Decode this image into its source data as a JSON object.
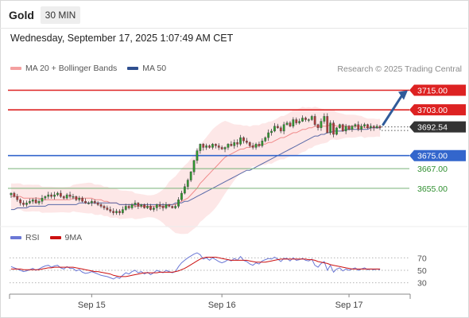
{
  "header": {
    "instrument": "Gold",
    "timeframe": "30 MIN",
    "datetime": "Wednesday, September 17, 2025 1:07:49 AM CET"
  },
  "legend": {
    "main": [
      {
        "label": "MA 20 + Bollinger Bands",
        "color": "#f4a0a0"
      },
      {
        "label": "MA 50",
        "color": "#2f4f8f"
      }
    ],
    "indicator": [
      {
        "label": "RSI",
        "color": "#6b78d6"
      },
      {
        "label": "9MA",
        "color": "#cc1111"
      }
    ]
  },
  "credit": "Research © 2025 Trading Central",
  "colors": {
    "up": "#2e9a2e",
    "down": "#b23a3a",
    "resistance": "#dd2222",
    "support": "#3366cc",
    "target": "#77b277",
    "last": "#333333",
    "arrow": "#2f5b9a"
  },
  "chart_data": [
    {
      "type": "candlestick",
      "ylim": [
        3634,
        3724
      ],
      "x_range": [
        0,
        120
      ],
      "x_ticks": [
        {
          "x": 26,
          "label": "Sep 15"
        },
        {
          "x": 68,
          "label": "Sep 16"
        },
        {
          "x": 109,
          "label": "Sep 17"
        }
      ],
      "levels": [
        {
          "value": 3715.0,
          "label": "3715.00",
          "kind": "resistance"
        },
        {
          "value": 3703.0,
          "label": "3703.00",
          "kind": "resistance"
        },
        {
          "value": 3692.54,
          "label": "3692.54",
          "kind": "last"
        },
        {
          "value": 3675.0,
          "label": "3675.00",
          "kind": "support"
        },
        {
          "value": 3667.0,
          "label": "3667.00",
          "kind": "target"
        },
        {
          "value": 3655.0,
          "label": "3655.00",
          "kind": "target"
        }
      ],
      "close": [
        3652,
        3650,
        3648,
        3646,
        3645,
        3646,
        3647,
        3648,
        3646,
        3647,
        3649,
        3650,
        3651,
        3650,
        3651,
        3652,
        3650,
        3649,
        3651,
        3650,
        3650,
        3648,
        3649,
        3647,
        3646,
        3646,
        3647,
        3646,
        3645,
        3644,
        3643,
        3642,
        3641,
        3640,
        3641,
        3640,
        3642,
        3644,
        3643,
        3645,
        3646,
        3644,
        3645,
        3643,
        3644,
        3642,
        3643,
        3645,
        3644,
        3643,
        3645,
        3644,
        3643,
        3644,
        3648,
        3652,
        3656,
        3660,
        3665,
        3672,
        3678,
        3682,
        3680,
        3681,
        3680,
        3682,
        3681,
        3680,
        3679,
        3680,
        3682,
        3681,
        3683,
        3682,
        3686,
        3684,
        3683,
        3681,
        3680,
        3682,
        3681,
        3684,
        3686,
        3689,
        3690,
        3693,
        3692,
        3690,
        3694,
        3695,
        3693,
        3697,
        3695,
        3696,
        3698,
        3697,
        3697,
        3699,
        3694,
        3692,
        3696,
        3699,
        3689,
        3695,
        3688,
        3692,
        3694,
        3690,
        3693,
        3691,
        3693,
        3694,
        3691,
        3693,
        3694,
        3692,
        3693,
        3692,
        3693,
        3692
      ],
      "ma20": [
        3650,
        3650,
        3650,
        3650,
        3649,
        3649,
        3649,
        3649,
        3649,
        3649,
        3648,
        3648,
        3648,
        3648,
        3648,
        3648,
        3648,
        3648,
        3648,
        3648,
        3649,
        3649,
        3649,
        3649,
        3649,
        3649,
        3649,
        3648,
        3648,
        3648,
        3647,
        3647,
        3646,
        3646,
        3646,
        3645,
        3645,
        3645,
        3645,
        3645,
        3644,
        3644,
        3644,
        3644,
        3644,
        3644,
        3644,
        3644,
        3644,
        3644,
        3644,
        3645,
        3645,
        3645,
        3646,
        3647,
        3648,
        3649,
        3651,
        3653,
        3655,
        3658,
        3660,
        3662,
        3664,
        3666,
        3668,
        3670,
        3672,
        3674,
        3675,
        3676,
        3677,
        3678,
        3679,
        3679,
        3680,
        3680,
        3681,
        3681,
        3681,
        3682,
        3682,
        3683,
        3683,
        3684,
        3685,
        3686,
        3686,
        3687,
        3688,
        3689,
        3689,
        3690,
        3691,
        3691,
        3692,
        3692,
        3693,
        3693,
        3693,
        3693,
        3693,
        3694,
        3694,
        3693,
        3693,
        3693,
        3693,
        3693,
        3693,
        3693,
        3693,
        3693,
        3692,
        3692,
        3692,
        3692,
        3692,
        3692
      ],
      "ma50": [
        3642,
        3642,
        3643,
        3643,
        3643,
        3643,
        3644,
        3644,
        3644,
        3644,
        3644,
        3644,
        3645,
        3645,
        3645,
        3645,
        3645,
        3645,
        3645,
        3645,
        3645,
        3645,
        3646,
        3646,
        3646,
        3646,
        3646,
        3646,
        3646,
        3646,
        3646,
        3646,
        3646,
        3646,
        3646,
        3645,
        3645,
        3645,
        3645,
        3645,
        3645,
        3645,
        3645,
        3645,
        3645,
        3645,
        3645,
        3645,
        3645,
        3645,
        3645,
        3645,
        3645,
        3646,
        3646,
        3646,
        3647,
        3647,
        3648,
        3649,
        3650,
        3651,
        3652,
        3653,
        3654,
        3655,
        3656,
        3657,
        3658,
        3659,
        3660,
        3661,
        3662,
        3663,
        3664,
        3665,
        3666,
        3666,
        3667,
        3668,
        3669,
        3670,
        3671,
        3672,
        3673,
        3674,
        3675,
        3676,
        3677,
        3678,
        3679,
        3680,
        3681,
        3682,
        3683,
        3684,
        3685,
        3686,
        3687,
        3687,
        3688,
        3688,
        3689,
        3689,
        3690,
        3690,
        3690,
        3690,
        3691,
        3691,
        3691,
        3691,
        3691,
        3691,
        3691,
        3691,
        3692,
        3692,
        3692,
        3692
      ]
    },
    {
      "type": "line",
      "ylim": [
        22,
        78
      ],
      "y_ticks": [
        70,
        50,
        30
      ],
      "reference_lines": [
        70,
        50,
        30
      ],
      "series": [
        {
          "name": "RSI",
          "values": [
            56,
            54,
            52,
            50,
            48,
            49,
            51,
            53,
            50,
            52,
            55,
            57,
            58,
            55,
            57,
            58,
            54,
            52,
            56,
            53,
            53,
            49,
            51,
            47,
            45,
            46,
            48,
            46,
            44,
            42,
            41,
            40,
            38,
            36,
            39,
            37,
            42,
            46,
            44,
            48,
            50,
            46,
            48,
            44,
            47,
            43,
            46,
            50,
            48,
            46,
            50,
            48,
            46,
            48,
            56,
            62,
            66,
            70,
            73,
            76,
            78,
            75,
            68,
            70,
            66,
            70,
            67,
            64,
            62,
            64,
            67,
            65,
            69,
            66,
            72,
            66,
            64,
            60,
            58,
            62,
            60,
            65,
            67,
            69,
            68,
            71,
            68,
            64,
            69,
            69,
            65,
            70,
            66,
            67,
            69,
            66,
            65,
            68,
            58,
            55,
            61,
            64,
            50,
            58,
            47,
            52,
            54,
            49,
            52,
            50,
            52,
            54,
            50,
            52,
            54,
            51,
            52,
            51,
            52,
            51
          ]
        },
        {
          "name": "9MA",
          "values": [
            52,
            52,
            52,
            52,
            51,
            51,
            51,
            51,
            51,
            51,
            52,
            53,
            54,
            54,
            55,
            55,
            55,
            55,
            55,
            55,
            55,
            54,
            53,
            52,
            51,
            50,
            49,
            48,
            48,
            47,
            46,
            45,
            44,
            42,
            41,
            40,
            40,
            40,
            41,
            42,
            43,
            44,
            45,
            46,
            46,
            46,
            46,
            46,
            47,
            47,
            47,
            47,
            47,
            48,
            49,
            51,
            53,
            56,
            59,
            62,
            65,
            68,
            70,
            71,
            71,
            71,
            71,
            70,
            69,
            68,
            67,
            66,
            66,
            66,
            66,
            66,
            66,
            65,
            64,
            63,
            63,
            63,
            63,
            64,
            65,
            66,
            67,
            68,
            68,
            68,
            68,
            68,
            68,
            68,
            68,
            68,
            67,
            67,
            66,
            64,
            63,
            62,
            61,
            59,
            58,
            57,
            56,
            55,
            54,
            53,
            52,
            52,
            52,
            52,
            52,
            52,
            52,
            52,
            52,
            52
          ]
        }
      ]
    }
  ]
}
